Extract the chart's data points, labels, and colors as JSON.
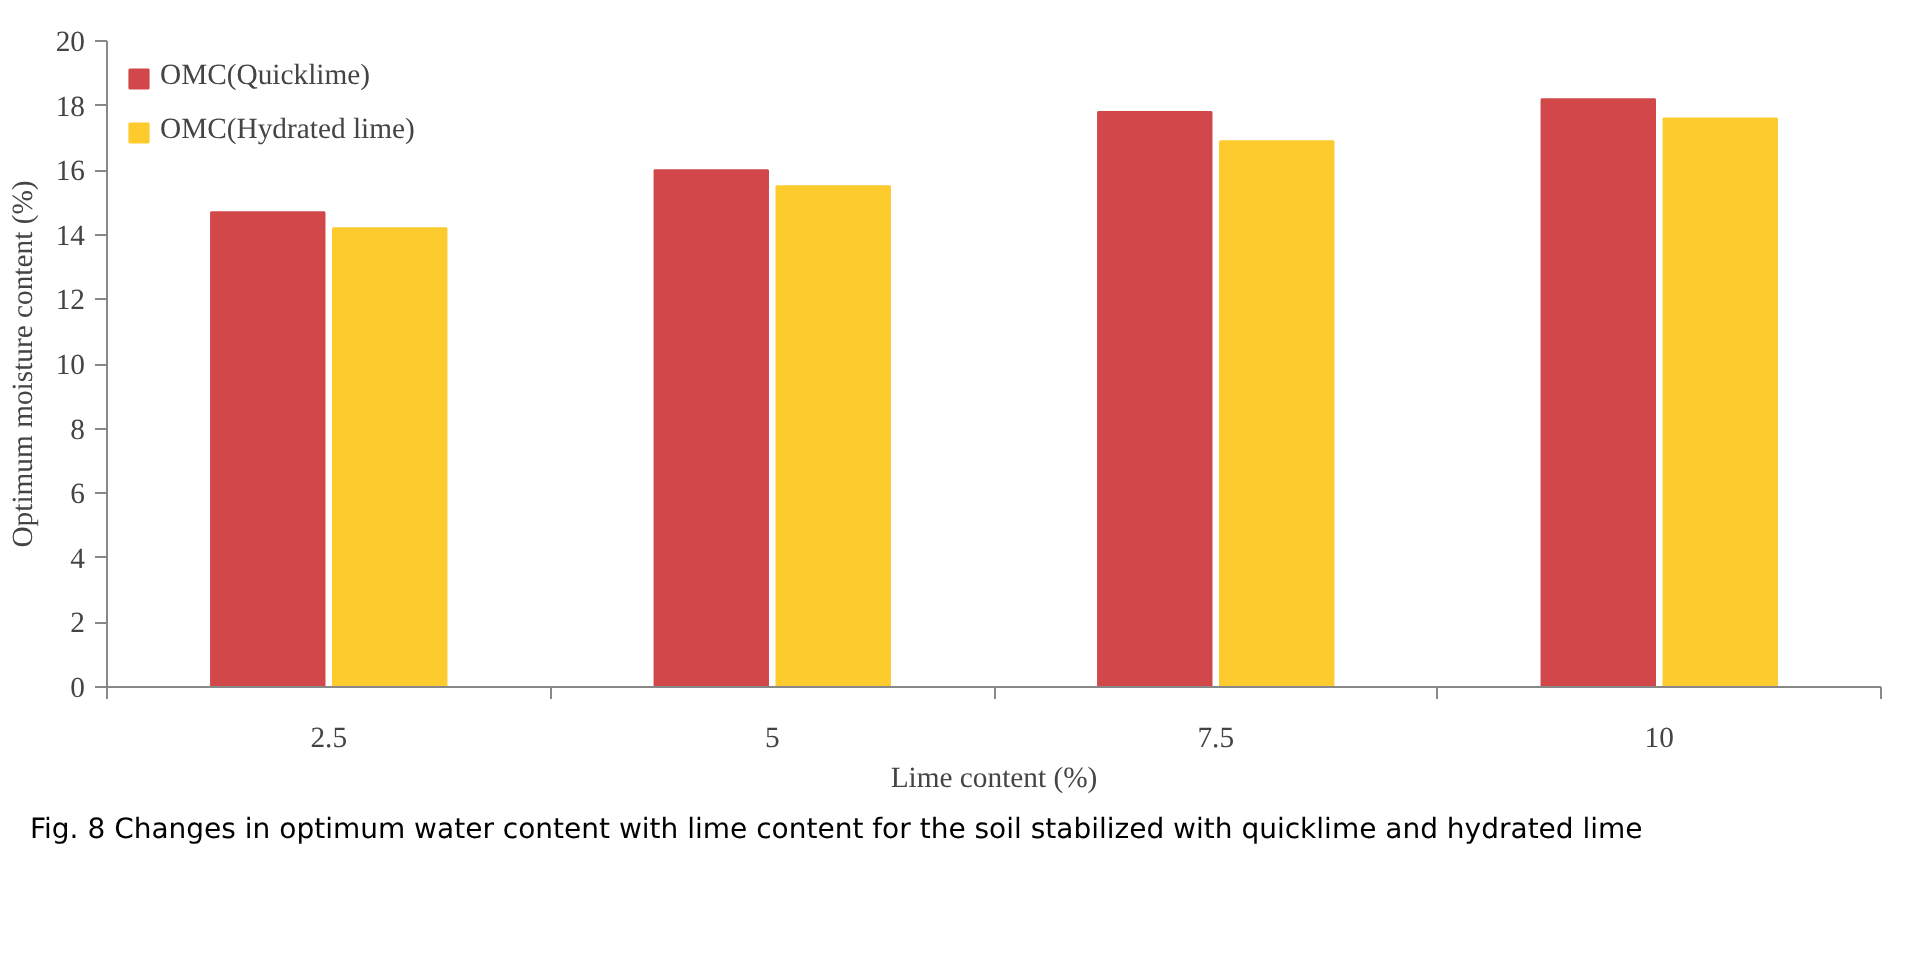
{
  "chart_data": {
    "type": "bar",
    "xlabel": "Lime content (%)",
    "ylabel": "Optimum moisture content (%)",
    "categories": [
      "2.5",
      "5",
      "7.5",
      "10"
    ],
    "series": [
      {
        "name": "OMC(Quicklime)",
        "color": "#d2484a",
        "values": [
          14.7,
          16.0,
          17.8,
          18.2
        ]
      },
      {
        "name": "OMC(Hydrated lime)",
        "color": "#fdcb2e",
        "values": [
          14.2,
          15.5,
          16.9,
          17.6
        ]
      }
    ],
    "ylim": [
      0,
      20
    ],
    "yticks": [
      0,
      2,
      4,
      6,
      8,
      10,
      12,
      14,
      16,
      18,
      20
    ],
    "grid": false,
    "legend": "top left",
    "annotations": [
      "Fig. 8  Changes in optimum water content with lime content for the soil stabilized with quicklime and hydrated lime"
    ]
  }
}
